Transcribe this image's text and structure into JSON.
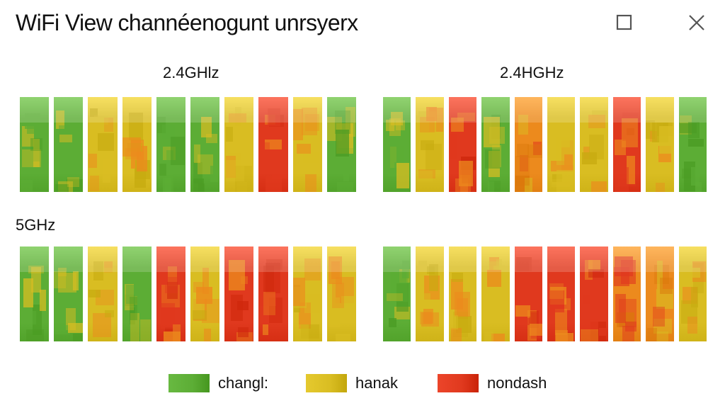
{
  "window": {
    "title": "WiFi View channéenogunt  unrsyerx",
    "maximize_icon": "maximize-icon",
    "close_icon": "close-icon"
  },
  "colors": {
    "green": "#5cad35",
    "yellow": "#d9bd22",
    "orange": "#ec8a1d",
    "red": "#e0391e"
  },
  "panels": [
    {
      "label": "2.4GHlz",
      "channels": [
        "green",
        "green",
        "yellow",
        "yellow-red",
        "green",
        "green-yellow",
        "yellow",
        "red",
        "yellow",
        "green"
      ]
    },
    {
      "label": "2.4HGHz",
      "channels": [
        "green",
        "yellow",
        "red",
        "green",
        "orange",
        "yellow",
        "yellow",
        "red",
        "yellow",
        "green"
      ]
    },
    {
      "label": "5GHz",
      "channels": [
        "green",
        "green",
        "yellow",
        "green-yellow",
        "red",
        "yellow",
        "red",
        "red",
        "yellow",
        "yellow"
      ]
    },
    {
      "label": "",
      "channels": [
        "green",
        "yellow",
        "yellow",
        "yellow",
        "red",
        "red",
        "red",
        "orange",
        "orange",
        "yellow"
      ]
    }
  ],
  "legend": [
    {
      "label": "changl:",
      "color": "#5cad35"
    },
    {
      "label": "hanak",
      "color": "#d9bd22"
    },
    {
      "label": "nondash",
      "color": "#e0391e"
    }
  ]
}
